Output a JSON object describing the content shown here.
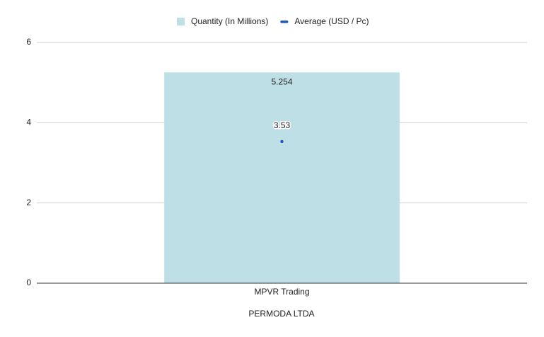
{
  "chart_data": {
    "type": "combo",
    "x_label": "PERMODA LTDA",
    "categories": [
      "MPVR Trading"
    ],
    "series": [
      {
        "name": "Quantity (In Millions)",
        "type": "bar",
        "color": "#bddfe5",
        "values": [
          5.254
        ]
      },
      {
        "name": "Average (USD / Pc)",
        "type": "line",
        "color": "#1a56c4",
        "values": [
          3.53
        ]
      }
    ],
    "ylim": [
      0,
      6
    ],
    "yticks": [
      0,
      2,
      4,
      6
    ],
    "grid": true,
    "legend": "top"
  }
}
